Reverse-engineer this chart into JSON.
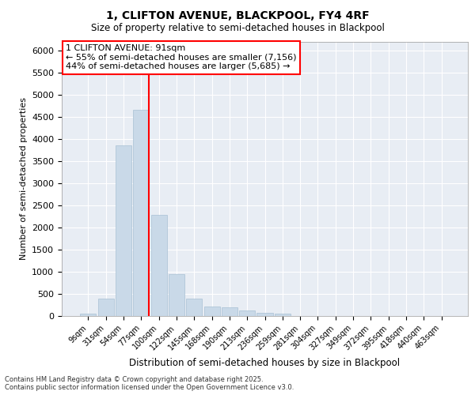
{
  "title_line1": "1, CLIFTON AVENUE, BLACKPOOL, FY4 4RF",
  "title_line2": "Size of property relative to semi-detached houses in Blackpool",
  "xlabel": "Distribution of semi-detached houses by size in Blackpool",
  "ylabel": "Number of semi-detached properties",
  "bar_color": "#c9d9e8",
  "bar_edge_color": "#a8c0d4",
  "background_color": "#e8edf4",
  "grid_color": "#ffffff",
  "annotation_text": "1 CLIFTON AVENUE: 91sqm\n← 55% of semi-detached houses are smaller (7,156)\n44% of semi-detached houses are larger (5,685) →",
  "vline_color": "red",
  "categories": [
    "9sqm",
    "31sqm",
    "54sqm",
    "77sqm",
    "100sqm",
    "122sqm",
    "145sqm",
    "168sqm",
    "190sqm",
    "213sqm",
    "236sqm",
    "259sqm",
    "281sqm",
    "304sqm",
    "327sqm",
    "349sqm",
    "372sqm",
    "395sqm",
    "418sqm",
    "440sqm",
    "463sqm"
  ],
  "values": [
    50,
    390,
    3850,
    4650,
    2280,
    950,
    400,
    220,
    200,
    130,
    80,
    50,
    0,
    0,
    0,
    0,
    0,
    0,
    0,
    0,
    0
  ],
  "ylim": [
    0,
    6200
  ],
  "yticks": [
    0,
    500,
    1000,
    1500,
    2000,
    2500,
    3000,
    3500,
    4000,
    4500,
    5000,
    5500,
    6000
  ],
  "vline_bar_index": 3,
  "footnote": "Contains HM Land Registry data © Crown copyright and database right 2025.\nContains public sector information licensed under the Open Government Licence v3.0."
}
